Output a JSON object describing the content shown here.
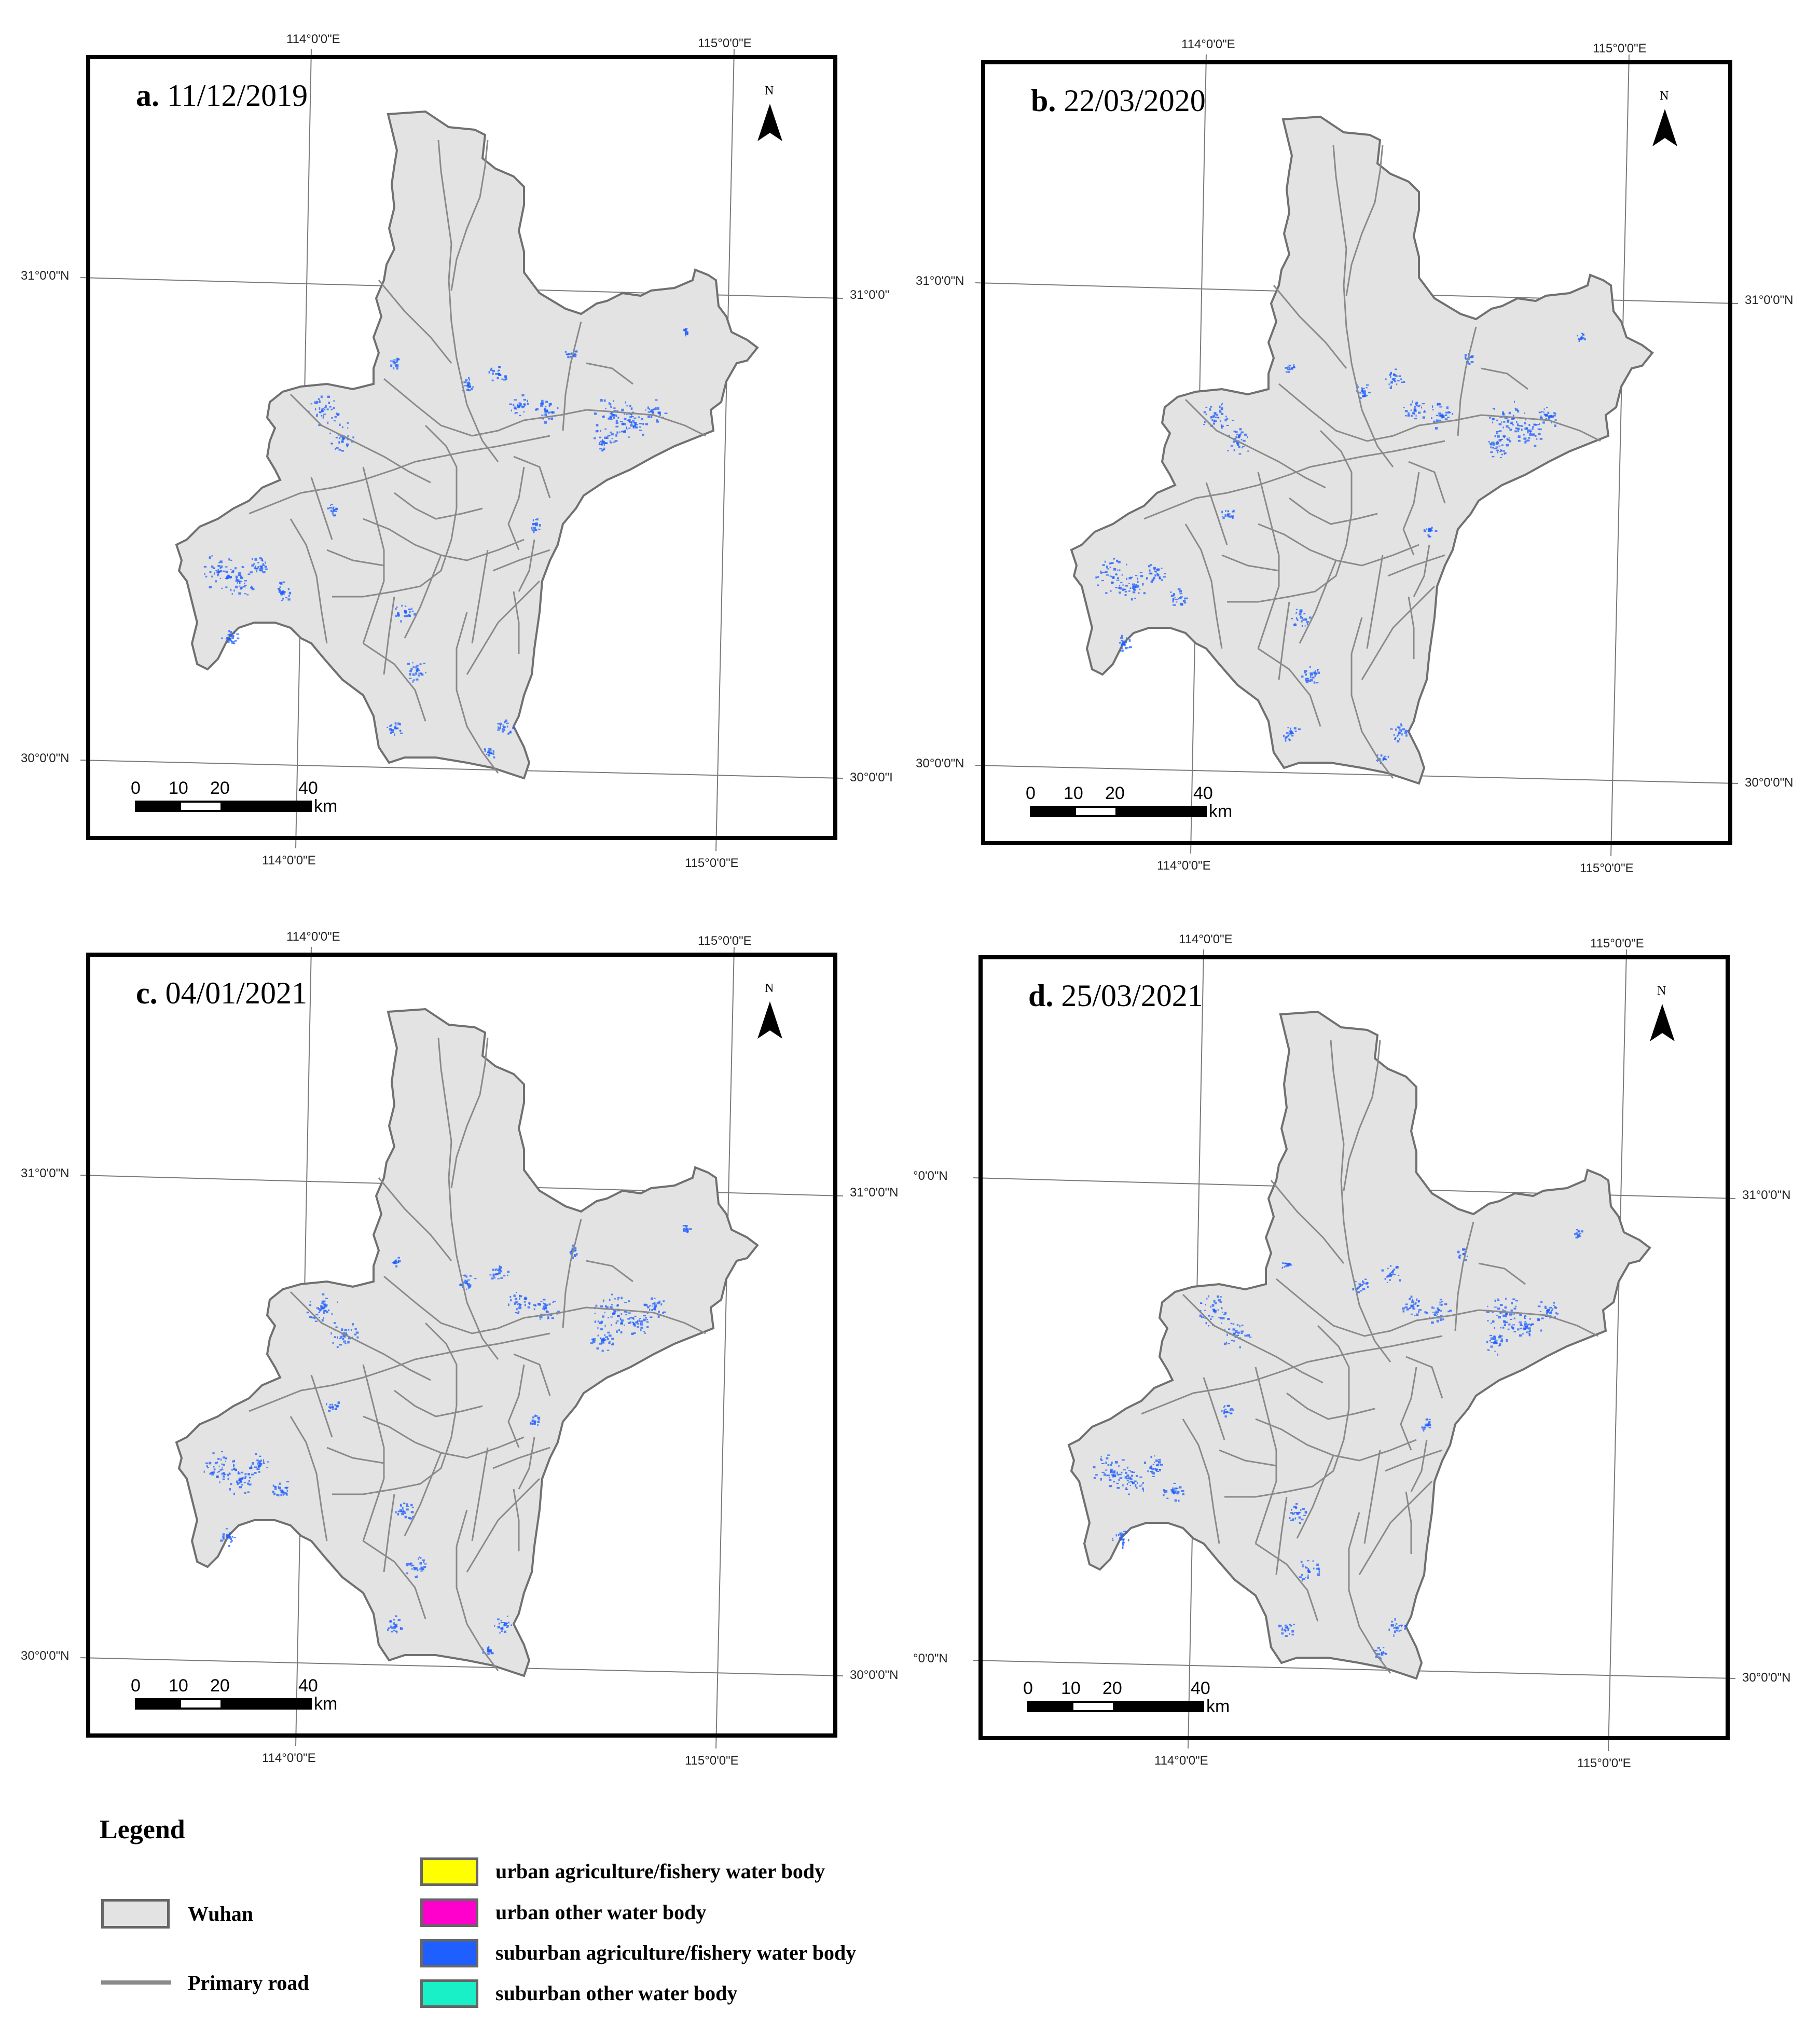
{
  "panels": [
    {
      "id": "a",
      "letter": "a.",
      "date": "11/12/2019",
      "top_labels": [
        "114°0'0\"E",
        "115°0'0\"E"
      ],
      "bottom_labels": [
        "114°0'0\"E",
        "115°0'0\"E"
      ],
      "left_labels": [
        "31°0'0\"N",
        "30°0'0\"N"
      ],
      "right_labels": [
        "31°0'0\"",
        "30°0'0\"I"
      ]
    },
    {
      "id": "b",
      "letter": "b.",
      "date": "22/03/2020",
      "top_labels": [
        "114°0'0\"E",
        "115°0'0\"E"
      ],
      "bottom_labels": [
        "114°0'0\"E",
        "115°0'0\"E"
      ],
      "left_labels": [
        "31°0'0\"N",
        "30°0'0\"N"
      ],
      "right_labels": [
        "31°0'0\"N",
        "30°0'0\"N"
      ]
    },
    {
      "id": "c",
      "letter": "c.",
      "date": "04/01/2021",
      "top_labels": [
        "114°0'0\"E",
        "115°0'0\"E"
      ],
      "bottom_labels": [
        "114°0'0\"E",
        "115°0'0\"E"
      ],
      "left_labels": [
        "31°0'0\"N",
        "30°0'0\"N"
      ],
      "right_labels": [
        "31°0'0\"N",
        "30°0'0\"N"
      ]
    },
    {
      "id": "d",
      "letter": "d.",
      "date": "25/03/2021",
      "top_labels": [
        "114°0'0\"E",
        "115°0'0\"E"
      ],
      "bottom_labels": [
        "114°0'0\"E",
        "115°0'0\"E"
      ],
      "left_labels": [
        "°0'0\"N",
        "°0'0\"N"
      ],
      "right_labels": [
        "31°0'0\"N",
        "30°0'0\"N"
      ]
    }
  ],
  "map_common": {
    "north_label": "N",
    "scale_ticks": [
      "0",
      "10",
      "20",
      "40"
    ],
    "scale_unit": "km"
  },
  "legend": {
    "title": "Legend",
    "wuhan": {
      "label": "Wuhan",
      "color": "#e3e3e3"
    },
    "road": {
      "label": "Primary road",
      "color": "#8a8a8a"
    },
    "classes": [
      {
        "label": "urban agriculture/fishery water body",
        "color": "#ffff00"
      },
      {
        "label": "urban other water body",
        "color": "#ff00cc"
      },
      {
        "label": "suburban agriculture/fishery water body",
        "color": "#1f5fff"
      },
      {
        "label": "suburban other water body",
        "color": "#19f0c8"
      }
    ]
  }
}
